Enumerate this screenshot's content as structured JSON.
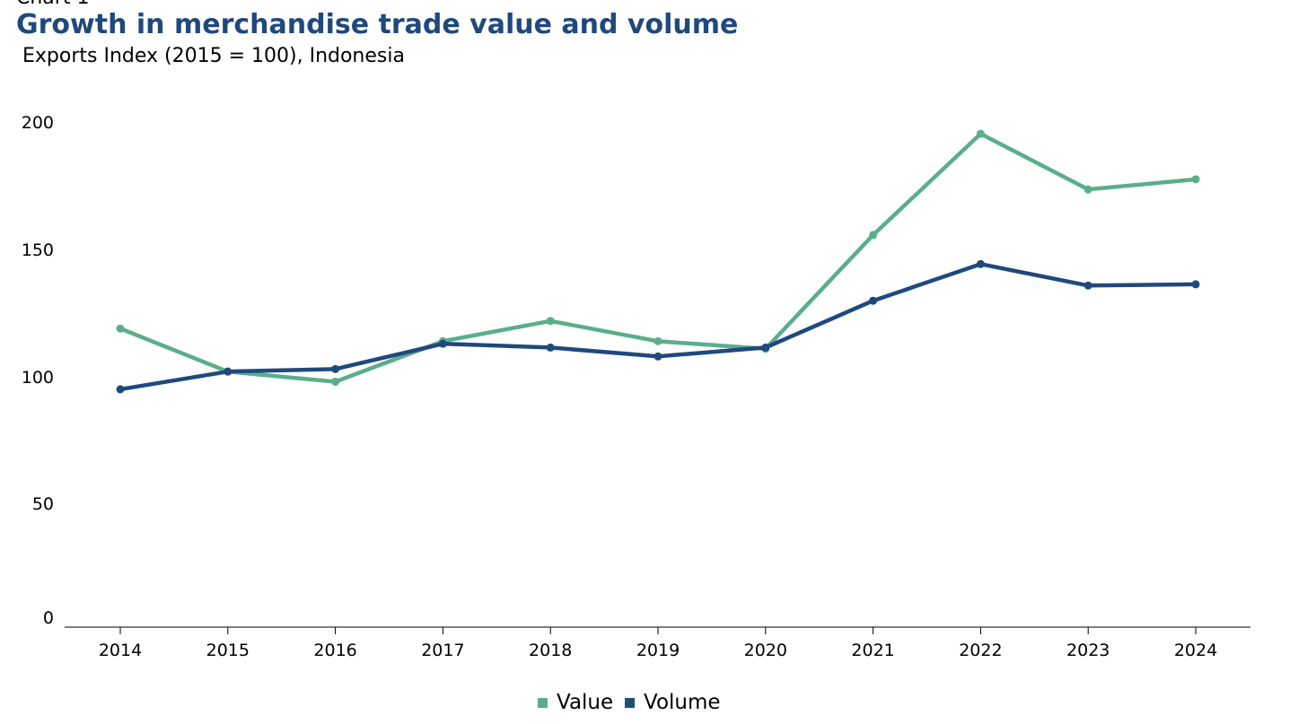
{
  "chart_data": {
    "type": "line",
    "kicker": "Chart 1",
    "title": "Growth in merchandise trade value and volume",
    "subtitle": "Exports Index (2015 = 100), Indonesia",
    "xlabel": "",
    "ylabel": "",
    "x": [
      "2014",
      "2015",
      "2016",
      "2017",
      "2018",
      "2019",
      "2020",
      "2021",
      "2022",
      "2023",
      "2024"
    ],
    "ylim": [
      0,
      200
    ],
    "yticks": [
      "0",
      "50",
      "100",
      "150",
      "200"
    ],
    "grid": false,
    "legend_position": "bottom-center",
    "series": [
      {
        "name": "Value",
        "color": "#5aae8c",
        "values": [
          118,
          101,
          97,
          113,
          121,
          113,
          110,
          155,
          195,
          173,
          177
        ]
      },
      {
        "name": "Volume",
        "color": "#1f497d",
        "values": [
          94,
          101,
          102,
          112,
          110.5,
          107,
          110.5,
          129,
          143.5,
          135,
          135.5
        ]
      }
    ]
  }
}
